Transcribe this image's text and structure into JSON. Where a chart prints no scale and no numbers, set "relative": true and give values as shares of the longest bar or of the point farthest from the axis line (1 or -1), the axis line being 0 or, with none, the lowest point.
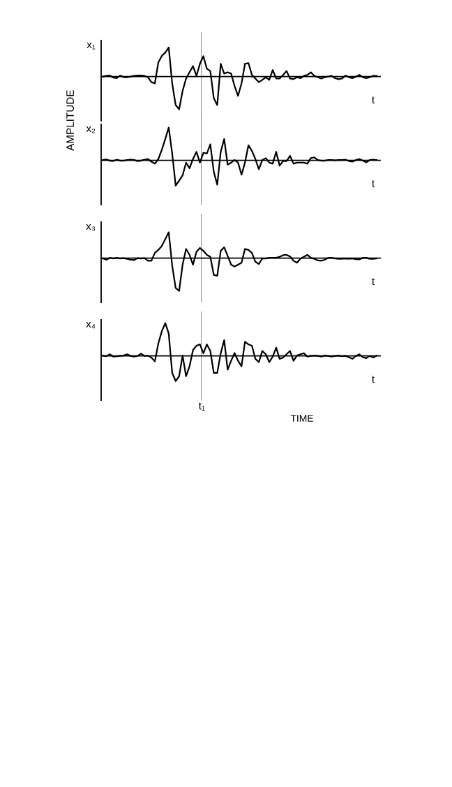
{
  "chart_data": [
    {
      "type": "line",
      "title": "x₁",
      "relative": true,
      "annotations": [
        "t"
      ],
      "categories": [
        null,
        null,
        null,
        null,
        null,
        null,
        null,
        null,
        null,
        null,
        null,
        null,
        null,
        null,
        null,
        null,
        null,
        null,
        null,
        null,
        null,
        null,
        null,
        null,
        null,
        null,
        null,
        null,
        null,
        null,
        null,
        null,
        null,
        null,
        null,
        null,
        null,
        null,
        null,
        null,
        null,
        null,
        null,
        null,
        null,
        null,
        null,
        null,
        null,
        null,
        null,
        null,
        null,
        null,
        null,
        null,
        null,
        null,
        null,
        null,
        null,
        null,
        null,
        null,
        null,
        null,
        null,
        null,
        null,
        null,
        null,
        null,
        null,
        null,
        null,
        null,
        null,
        null,
        null,
        null
      ],
      "series": [
        {
          "color": "#000000",
          "values": [
            0,
            0.02,
            0.03,
            -0.03,
            -0.05,
            0.03,
            -0.02,
            -0.02,
            0,
            0.02,
            0.03,
            0.03,
            0.02,
            -0.02,
            -0.17,
            -0.21,
            0.43,
            0.63,
            0.73,
            0.89,
            -0.21,
            -0.87,
            -1,
            -0.44,
            -0.06,
            0.13,
            0.32,
            0.02,
            0.39,
            0.62,
            0.24,
            0.17,
            -0.66,
            -0.87,
            0.39,
            0.09,
            0.13,
            0.09,
            -0.29,
            -0.59,
            -0.21,
            0.39,
            0.41,
            0.05,
            -0.06,
            -0.17,
            -0.1,
            -0.02,
            -0.1,
            0.2,
            -0.06,
            -0.06,
            0.05,
            0.17,
            -0.06,
            -0.08,
            -0.02,
            -0.05,
            0.02,
            0.05,
            0.13,
            0.02,
            -0.02,
            -0.06,
            -0.02,
            0,
            0.02,
            -0.05,
            -0.08,
            -0.06,
            0.03,
            -0.02,
            -0.05,
            0,
            0.05,
            -0.02,
            -0.05,
            -0.02,
            0.02,
            0.02
          ]
        }
      ]
    },
    {
      "type": "line",
      "title": "x₂",
      "ylabel": "AMPLITUDE",
      "relative": true,
      "annotations": [
        "t"
      ],
      "categories": [
        null,
        null,
        null,
        null,
        null,
        null,
        null,
        null,
        null,
        null,
        null,
        null,
        null,
        null,
        null,
        null,
        null,
        null,
        null,
        null,
        null,
        null,
        null,
        null,
        null,
        null,
        null,
        null,
        null,
        null,
        null,
        null,
        null,
        null,
        null,
        null,
        null,
        null,
        null,
        null,
        null,
        null,
        null,
        null,
        null,
        null,
        null,
        null,
        null,
        null,
        null,
        null,
        null,
        null,
        null,
        null,
        null,
        null,
        null,
        null,
        null,
        null,
        null,
        null,
        null,
        null,
        null,
        null,
        null,
        null,
        null,
        null,
        null,
        null,
        null,
        null,
        null,
        null,
        null,
        null
      ],
      "series": [
        {
          "color": "#000000",
          "values": [
            0.01,
            0.03,
            -0.01,
            -0.02,
            0.02,
            -0.01,
            -0.01,
            0.01,
            0.02,
            0.01,
            -0.02,
            -0.01,
            0.02,
            0.04,
            -0.04,
            -0.1,
            0.04,
            0.32,
            0.65,
            1,
            0.21,
            -0.77,
            -0.62,
            -0.46,
            -0.07,
            -0.24,
            0.04,
            0.26,
            -0.07,
            0.23,
            0.21,
            0.49,
            -0.35,
            -0.74,
            0.26,
            0.65,
            -0.13,
            -0.07,
            0.01,
            -0.07,
            -0.44,
            -0.07,
            0.46,
            0.29,
            0.04,
            -0.27,
            0.01,
            0.07,
            -0.07,
            -0.1,
            0.26,
            -0.16,
            -0.02,
            -0.02,
            0.14,
            -0.1,
            -0.07,
            -0.07,
            -0.07,
            -0.1,
            0.07,
            0.09,
            0.01,
            -0.01,
            -0.01,
            0.01,
            0.01,
            0,
            0.01,
            0.01,
            0.02,
            -0.02,
            -0.04,
            0.01,
            0.04,
            -0.01,
            -0.06,
            0.01,
            0.02,
            0.01
          ]
        }
      ]
    },
    {
      "type": "line",
      "title": "x₃",
      "relative": true,
      "annotations": [
        "t"
      ],
      "categories": [
        null,
        null,
        null,
        null,
        null,
        null,
        null,
        null,
        null,
        null,
        null,
        null,
        null,
        null,
        null,
        null,
        null,
        null,
        null,
        null,
        null,
        null,
        null,
        null,
        null,
        null,
        null,
        null,
        null,
        null,
        null,
        null,
        null,
        null,
        null,
        null,
        null,
        null,
        null,
        null,
        null,
        null,
        null,
        null,
        null,
        null,
        null,
        null,
        null,
        null,
        null,
        null,
        null,
        null,
        null,
        null,
        null,
        null,
        null,
        null,
        null,
        null,
        null,
        null,
        null,
        null,
        null,
        null,
        null,
        null,
        null,
        null,
        null,
        null,
        null,
        null,
        null,
        null,
        null,
        null
      ],
      "series": [
        {
          "color": "#000000",
          "values": [
            -0.01,
            -0.05,
            0.01,
            -0.01,
            0.01,
            -0.01,
            0,
            -0.02,
            -0.05,
            -0.06,
            0,
            -0.01,
            0,
            -0.08,
            -0.08,
            0.16,
            0.25,
            0.37,
            0.58,
            0.79,
            -0.23,
            -0.91,
            -1,
            -0.2,
            0.28,
            0.1,
            -0.2,
            0.19,
            0.31,
            0.22,
            0.1,
            0.04,
            -0.51,
            -0.54,
            0.22,
            0.33,
            0.07,
            -0.2,
            -0.26,
            -0.2,
            -0.14,
            0.28,
            0.25,
            0.16,
            -0.11,
            -0.18,
            -0.01,
            -0.01,
            0.01,
            0.01,
            0.01,
            0.04,
            0.09,
            0.1,
            0.05,
            -0.08,
            -0.14,
            -0.02,
            0.04,
            0.1,
            0.01,
            -0.02,
            -0.07,
            -0.08,
            -0.05,
            0.01,
            0.01,
            -0.01,
            -0.02,
            -0.02,
            -0.01,
            -0.02,
            -0.01,
            -0.03,
            -0.04,
            0.01,
            0.01,
            -0.02,
            -0.02,
            -0.01
          ]
        }
      ]
    },
    {
      "type": "line",
      "title": "x₄",
      "xlabel": "TIME",
      "relative": true,
      "categories": [
        null,
        null,
        null,
        null,
        null,
        null,
        null,
        null,
        null,
        null,
        null,
        null,
        null,
        null,
        null,
        null,
        null,
        null,
        null,
        null,
        null,
        null,
        null,
        null,
        null,
        null,
        null,
        null,
        null,
        null,
        null,
        null,
        null,
        null,
        null,
        null,
        null,
        null,
        null,
        null,
        null,
        null,
        null,
        null,
        null,
        null,
        null,
        null,
        null,
        null,
        null,
        null,
        null,
        null,
        null,
        null,
        null,
        null,
        null,
        null,
        null,
        null,
        null,
        null,
        null,
        null,
        null,
        null,
        null,
        null,
        null,
        null,
        null,
        null,
        null,
        null,
        null,
        null,
        null,
        null
      ],
      "series": [
        {
          "color": "#000000",
          "values": [
            0.01,
            -0.01,
            0.05,
            -0.02,
            -0.01,
            0,
            0.01,
            0.05,
            0,
            -0.02,
            0,
            0.07,
            0,
            0.01,
            -0.05,
            -0.17,
            0.38,
            0.75,
            1,
            0.68,
            -0.52,
            -0.77,
            -0.62,
            0.01,
            -0.62,
            -0.32,
            0.18,
            0.31,
            0.35,
            0.08,
            0.35,
            0.15,
            -0.52,
            -0.52,
            0.08,
            0.48,
            -0.42,
            -0.15,
            0.09,
            -0.15,
            -0.32,
            0.43,
            0.35,
            0.31,
            -0.09,
            -0.19,
            0.15,
            0.05,
            -0.19,
            -0.02,
            0.25,
            -0.09,
            -0.05,
            0.05,
            0.15,
            -0.15,
            0.01,
            0.05,
            0.08,
            -0.02,
            0,
            0.01,
            0,
            -0.02,
            0.01,
            0,
            -0.02,
            0,
            0.01,
            -0.01,
            0,
            -0.04,
            -0.09,
            0,
            0.05,
            -0.04,
            -0.07,
            0,
            -0.05,
            0.01
          ]
        }
      ],
      "annotations": [
        "t",
        "t₁"
      ]
    }
  ]
}
